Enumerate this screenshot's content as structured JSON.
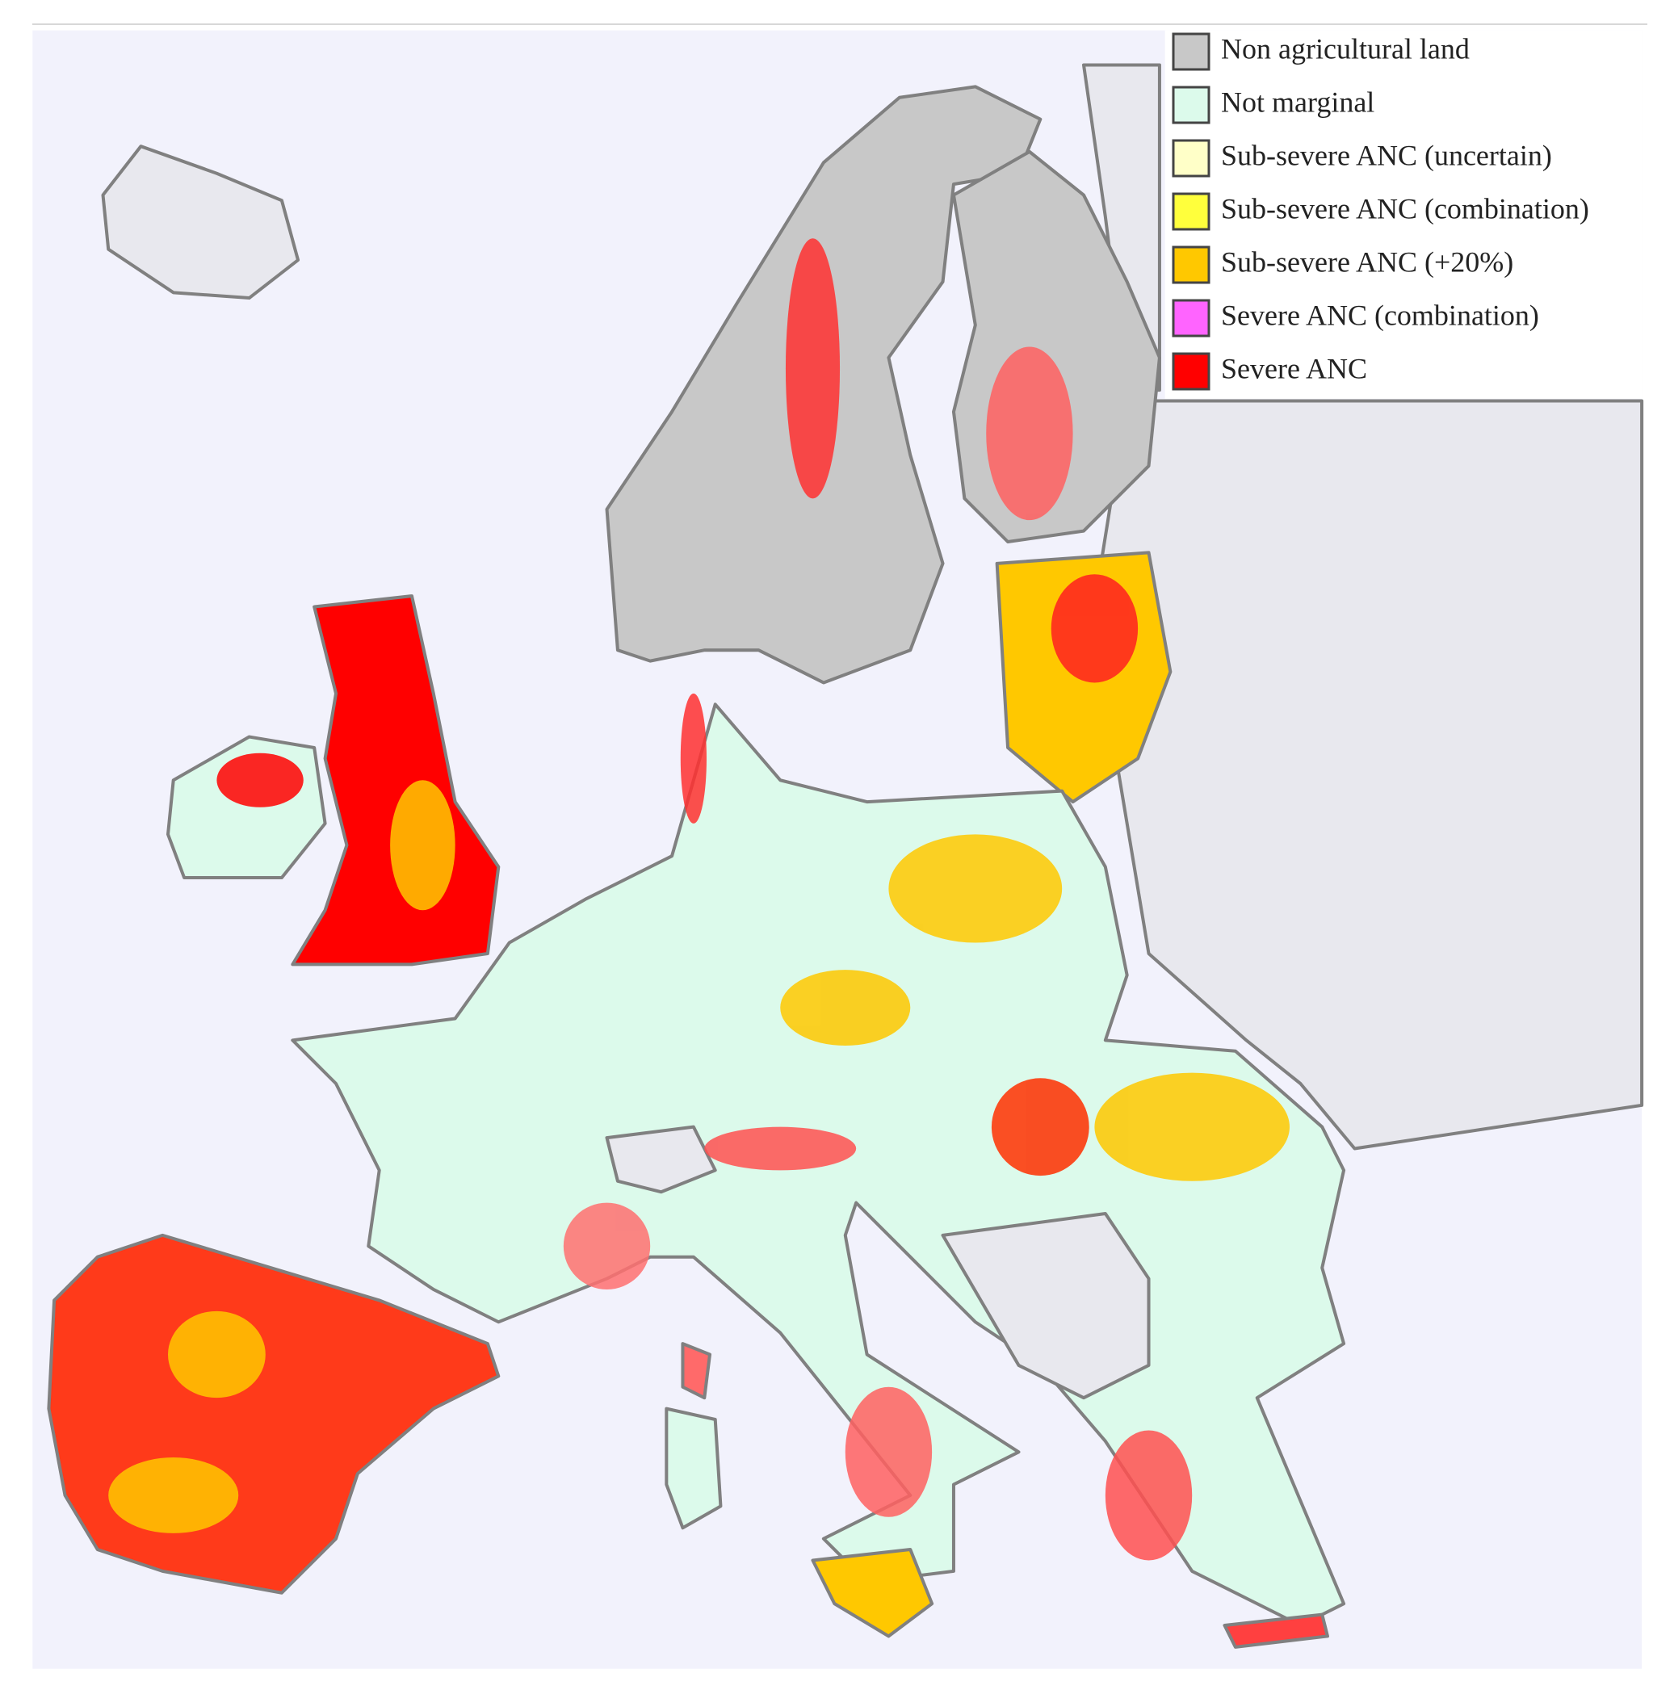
{
  "legend": {
    "items": [
      {
        "label": "Non agricultural land",
        "color": "#c8c8c8"
      },
      {
        "label": "Not marginal",
        "color": "#dcfaeb"
      },
      {
        "label": "Sub-severe ANC (uncertain)",
        "color": "#ffffc8"
      },
      {
        "label": "Sub-severe ANC (combination)",
        "color": "#ffff3c"
      },
      {
        "label": "Sub-severe ANC (+20%)",
        "color": "#ffc800"
      },
      {
        "label": "Severe ANC (combination)",
        "color": "#ff64ff"
      },
      {
        "label": "Severe ANC",
        "color": "#ff0000"
      }
    ]
  }
}
